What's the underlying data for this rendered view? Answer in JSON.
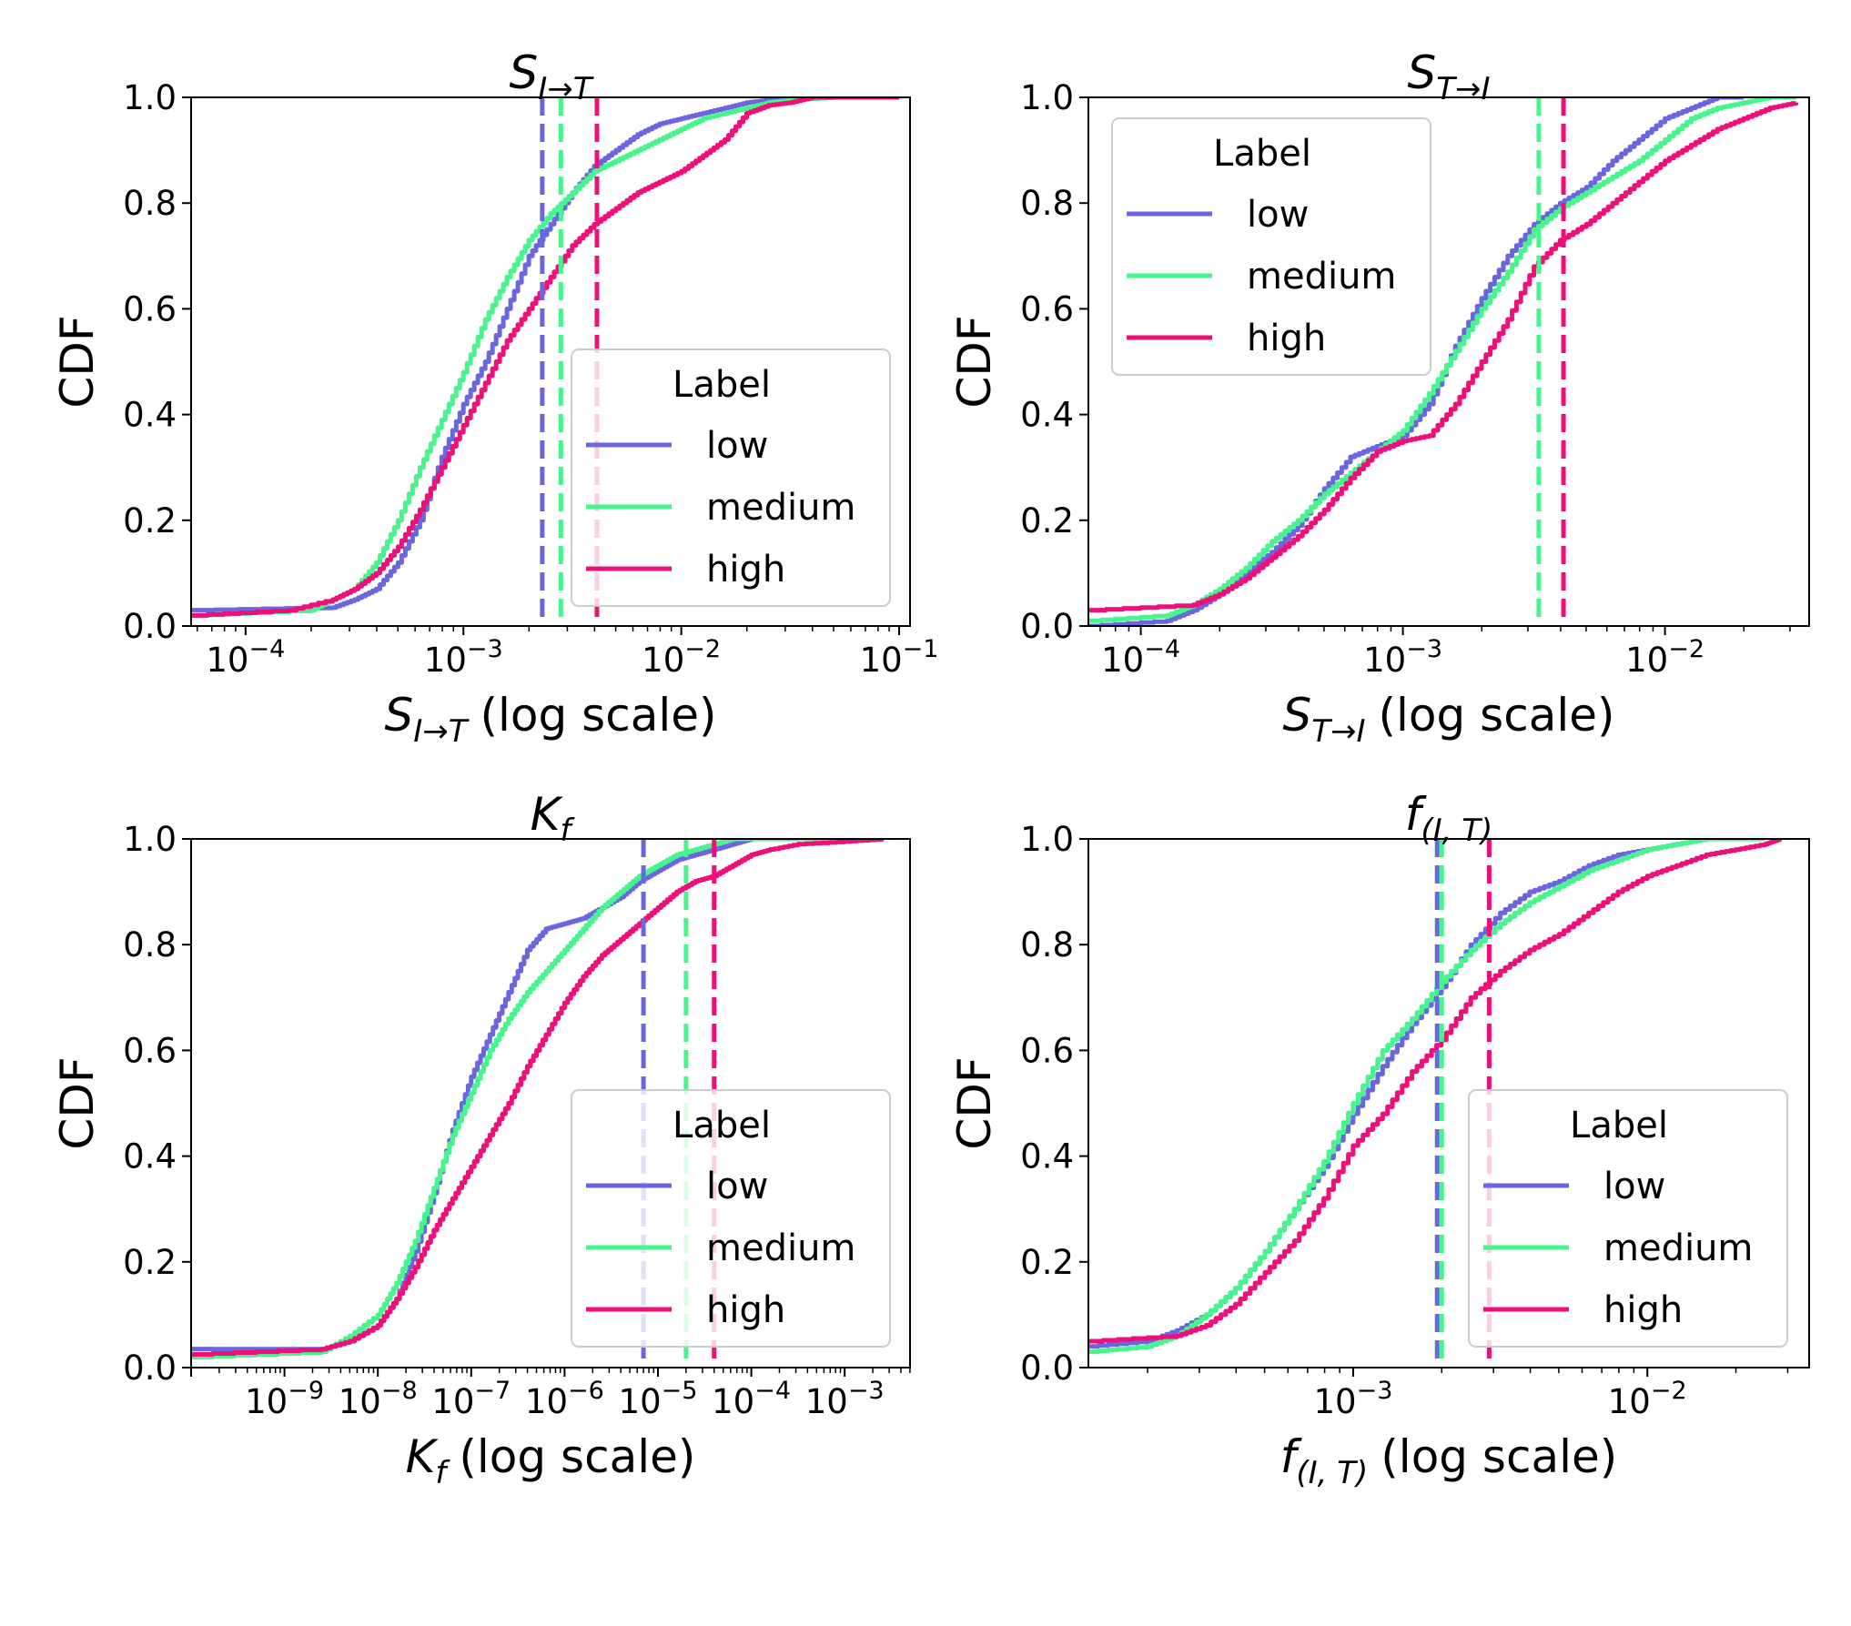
{
  "colors": {
    "low": "#6b66e0",
    "medium": "#46f58c",
    "high": "#ef0f79"
  },
  "legend": {
    "title": "Label",
    "entries": [
      "low",
      "medium",
      "high"
    ]
  },
  "chart_data": [
    {
      "id": "s_it",
      "type": "line",
      "title": "S_{I→T}",
      "title_main": "S",
      "title_sub": "I→T",
      "xlabel_main": "S",
      "xlabel_sub": "I→T",
      "xlabel_suffix": "(log scale)",
      "ylabel": "CDF",
      "xscale": "log",
      "xlim_log10": [
        -4.25,
        -0.95
      ],
      "ylim": [
        0,
        1
      ],
      "xticks": [
        {
          "exp": -4,
          "label": "10",
          "sup": "−4"
        },
        {
          "exp": -3,
          "label": "10",
          "sup": "−3"
        },
        {
          "exp": -2,
          "label": "10",
          "sup": "−2"
        },
        {
          "exp": -1,
          "label": "10",
          "sup": "−1"
        }
      ],
      "yticks": [
        "0.0",
        "0.2",
        "0.4",
        "0.6",
        "0.8",
        "1.0"
      ],
      "legend_position": "lower-right",
      "vlines": [
        {
          "series": "low",
          "x": 0.0023
        },
        {
          "series": "medium",
          "x": 0.0028
        },
        {
          "series": "high",
          "x": 0.0041
        }
      ],
      "series": [
        {
          "name": "low",
          "x_log10": [
            -4.25,
            -3.6,
            -3.5,
            -3.4,
            -3.3,
            -3.2,
            -3.1,
            -3.0,
            -2.9,
            -2.8,
            -2.7,
            -2.6,
            -2.5,
            -2.4,
            -2.3,
            -2.2,
            -2.1,
            -2.0,
            -1.9,
            -1.8,
            -1.7,
            -1.6,
            -1.5,
            -1.4
          ],
          "y": [
            0.03,
            0.035,
            0.05,
            0.07,
            0.12,
            0.2,
            0.32,
            0.42,
            0.5,
            0.6,
            0.7,
            0.76,
            0.82,
            0.87,
            0.9,
            0.93,
            0.95,
            0.96,
            0.97,
            0.98,
            0.99,
            0.995,
            1.0,
            1.0
          ]
        },
        {
          "name": "medium",
          "x_log10": [
            -4.25,
            -3.7,
            -3.6,
            -3.5,
            -3.4,
            -3.3,
            -3.2,
            -3.1,
            -3.0,
            -2.9,
            -2.8,
            -2.7,
            -2.6,
            -2.5,
            -2.4,
            -2.3,
            -2.2,
            -2.1,
            -2.0,
            -1.9,
            -1.8,
            -1.7,
            -1.6,
            -1.5,
            -1.3,
            -1.0
          ],
          "y": [
            0.02,
            0.03,
            0.05,
            0.07,
            0.12,
            0.2,
            0.3,
            0.39,
            0.48,
            0.58,
            0.66,
            0.73,
            0.78,
            0.82,
            0.86,
            0.88,
            0.9,
            0.92,
            0.94,
            0.96,
            0.97,
            0.98,
            0.99,
            0.995,
            1.0,
            1.0
          ]
        },
        {
          "name": "high",
          "x_log10": [
            -4.25,
            -3.8,
            -3.6,
            -3.5,
            -3.4,
            -3.3,
            -3.2,
            -3.1,
            -3.0,
            -2.9,
            -2.8,
            -2.7,
            -2.6,
            -2.5,
            -2.4,
            -2.3,
            -2.2,
            -2.1,
            -2.0,
            -1.9,
            -1.8,
            -1.7,
            -1.6,
            -1.5,
            -1.4,
            -1.3,
            -1.0
          ],
          "y": [
            0.02,
            0.03,
            0.05,
            0.07,
            0.1,
            0.15,
            0.22,
            0.3,
            0.38,
            0.46,
            0.54,
            0.6,
            0.66,
            0.72,
            0.76,
            0.79,
            0.82,
            0.84,
            0.86,
            0.89,
            0.92,
            0.97,
            0.985,
            0.99,
            1.0,
            1.0,
            1.0
          ]
        }
      ]
    },
    {
      "id": "s_ti",
      "type": "line",
      "title": "S_{T→I}",
      "title_main": "S",
      "title_sub": "T→I",
      "xlabel_main": "S",
      "xlabel_sub": "T→I",
      "xlabel_suffix": "(log scale)",
      "ylabel": "CDF",
      "xscale": "log",
      "xlim_log10": [
        -4.2,
        -1.45
      ],
      "ylim": [
        0,
        1
      ],
      "xticks": [
        {
          "exp": -4,
          "label": "10",
          "sup": "−4"
        },
        {
          "exp": -3,
          "label": "10",
          "sup": "−3"
        },
        {
          "exp": -2,
          "label": "10",
          "sup": "−2"
        }
      ],
      "yticks": [
        "0.0",
        "0.2",
        "0.4",
        "0.6",
        "0.8",
        "1.0"
      ],
      "legend_position": "upper-left",
      "vlines": [
        {
          "series": "medium",
          "x": 0.0033
        },
        {
          "series": "high",
          "x": 0.0041
        }
      ],
      "series": [
        {
          "name": "low",
          "x_log10": [
            -4.2,
            -3.9,
            -3.8,
            -3.7,
            -3.6,
            -3.5,
            -3.4,
            -3.3,
            -3.2,
            -3.1,
            -3.0,
            -2.9,
            -2.8,
            -2.7,
            -2.6,
            -2.5,
            -2.4,
            -2.3,
            -2.2,
            -2.1,
            -2.0,
            -1.9,
            -1.8,
            -1.7
          ],
          "y": [
            0.0,
            0.01,
            0.03,
            0.06,
            0.1,
            0.14,
            0.19,
            0.26,
            0.32,
            0.34,
            0.36,
            0.42,
            0.53,
            0.62,
            0.7,
            0.76,
            0.8,
            0.83,
            0.88,
            0.92,
            0.96,
            0.98,
            1.0,
            1.0
          ]
        },
        {
          "name": "medium",
          "x_log10": [
            -4.2,
            -3.9,
            -3.8,
            -3.7,
            -3.6,
            -3.5,
            -3.4,
            -3.3,
            -3.2,
            -3.1,
            -3.0,
            -2.9,
            -2.8,
            -2.7,
            -2.6,
            -2.5,
            -2.4,
            -2.3,
            -2.2,
            -2.1,
            -2.0,
            -1.9,
            -1.8,
            -1.7,
            -1.6,
            -1.5
          ],
          "y": [
            0.01,
            0.02,
            0.04,
            0.07,
            0.11,
            0.16,
            0.2,
            0.25,
            0.29,
            0.33,
            0.37,
            0.44,
            0.52,
            0.6,
            0.67,
            0.75,
            0.79,
            0.82,
            0.85,
            0.88,
            0.92,
            0.96,
            0.98,
            0.99,
            1.0,
            1.0
          ]
        },
        {
          "name": "high",
          "x_log10": [
            -4.2,
            -3.8,
            -3.7,
            -3.6,
            -3.5,
            -3.4,
            -3.3,
            -3.2,
            -3.1,
            -3.0,
            -2.9,
            -2.8,
            -2.7,
            -2.6,
            -2.5,
            -2.4,
            -2.3,
            -2.2,
            -2.1,
            -2.0,
            -1.9,
            -1.8,
            -1.7,
            -1.6,
            -1.5
          ],
          "y": [
            0.03,
            0.04,
            0.06,
            0.09,
            0.13,
            0.17,
            0.22,
            0.28,
            0.33,
            0.35,
            0.36,
            0.42,
            0.5,
            0.58,
            0.68,
            0.73,
            0.76,
            0.8,
            0.84,
            0.88,
            0.91,
            0.94,
            0.96,
            0.98,
            0.99
          ]
        }
      ]
    },
    {
      "id": "k_f",
      "type": "line",
      "title": "K_f",
      "title_main": "K",
      "title_sub": "f",
      "xlabel_main": "K",
      "xlabel_sub": "f",
      "xlabel_suffix": "(log scale)",
      "ylabel": "CDF",
      "xscale": "log",
      "xlim_log10": [
        -10.0,
        -2.3
      ],
      "ylim": [
        0,
        1
      ],
      "xticks": [
        {
          "exp": -9,
          "label": "10",
          "sup": "−9"
        },
        {
          "exp": -8,
          "label": "10",
          "sup": "−8"
        },
        {
          "exp": -7,
          "label": "10",
          "sup": "−7"
        },
        {
          "exp": -6,
          "label": "10",
          "sup": "−6"
        },
        {
          "exp": -5,
          "label": "10",
          "sup": "−5"
        },
        {
          "exp": -4,
          "label": "10",
          "sup": "−4"
        },
        {
          "exp": -3,
          "label": "10",
          "sup": "−3"
        }
      ],
      "yticks": [
        "0.0",
        "0.2",
        "0.4",
        "0.6",
        "0.8",
        "1.0"
      ],
      "legend_position": "lower-right",
      "vlines": [
        {
          "series": "low",
          "x": 7e-06
        },
        {
          "series": "medium",
          "x": 2e-05
        },
        {
          "series": "high",
          "x": 4e-05
        }
      ],
      "series": [
        {
          "name": "low",
          "x_log10": [
            -10.0,
            -8.6,
            -8.3,
            -8.0,
            -7.8,
            -7.6,
            -7.4,
            -7.2,
            -7.0,
            -6.8,
            -6.6,
            -6.4,
            -6.2,
            -6.0,
            -5.8,
            -5.6,
            -5.4,
            -5.2,
            -5.0,
            -4.8,
            -4.6,
            -4.4,
            -4.2,
            -4.0,
            -3.5,
            -2.6
          ],
          "y": [
            0.035,
            0.035,
            0.05,
            0.08,
            0.13,
            0.22,
            0.33,
            0.45,
            0.55,
            0.63,
            0.71,
            0.79,
            0.83,
            0.84,
            0.85,
            0.87,
            0.89,
            0.92,
            0.94,
            0.96,
            0.97,
            0.98,
            0.99,
            1.0,
            1.0,
            1.0
          ]
        },
        {
          "name": "medium",
          "x_log10": [
            -10.0,
            -8.6,
            -8.3,
            -8.0,
            -7.8,
            -7.6,
            -7.4,
            -7.2,
            -7.0,
            -6.8,
            -6.6,
            -6.4,
            -6.2,
            -6.0,
            -5.8,
            -5.6,
            -5.4,
            -5.2,
            -5.0,
            -4.8,
            -4.6,
            -4.4,
            -4.2,
            -3.8,
            -3.0,
            -2.6
          ],
          "y": [
            0.02,
            0.03,
            0.06,
            0.1,
            0.16,
            0.24,
            0.34,
            0.44,
            0.52,
            0.6,
            0.66,
            0.71,
            0.75,
            0.79,
            0.83,
            0.87,
            0.9,
            0.93,
            0.95,
            0.97,
            0.98,
            0.99,
            1.0,
            1.0,
            1.0,
            1.0
          ]
        },
        {
          "name": "high",
          "x_log10": [
            -10.0,
            -8.6,
            -8.3,
            -8.0,
            -7.8,
            -7.6,
            -7.4,
            -7.2,
            -7.0,
            -6.8,
            -6.6,
            -6.4,
            -6.2,
            -6.0,
            -5.8,
            -5.6,
            -5.4,
            -5.2,
            -5.0,
            -4.8,
            -4.6,
            -4.4,
            -4.2,
            -4.0,
            -3.8,
            -3.5,
            -3.0,
            -2.6
          ],
          "y": [
            0.025,
            0.035,
            0.05,
            0.08,
            0.13,
            0.19,
            0.26,
            0.32,
            0.38,
            0.44,
            0.5,
            0.57,
            0.63,
            0.69,
            0.74,
            0.78,
            0.81,
            0.84,
            0.87,
            0.9,
            0.92,
            0.93,
            0.95,
            0.97,
            0.98,
            0.99,
            0.995,
            1.0
          ]
        }
      ]
    },
    {
      "id": "f_it",
      "type": "line",
      "title": "f_{(I,T)}",
      "title_main": "f",
      "title_sub": "(I, T)",
      "xlabel_main": "f",
      "xlabel_sub": "(I, T)",
      "xlabel_suffix": "(log scale)",
      "ylabel": "CDF",
      "xscale": "log",
      "xlim_log10": [
        -3.9,
        -1.45
      ],
      "ylim": [
        0,
        1
      ],
      "xticks": [
        {
          "exp": -3,
          "label": "10",
          "sup": "−3"
        },
        {
          "exp": -2,
          "label": "10",
          "sup": "−2"
        }
      ],
      "yticks": [
        "0.0",
        "0.2",
        "0.4",
        "0.6",
        "0.8",
        "1.0"
      ],
      "legend_position": "lower-right",
      "vlines": [
        {
          "series": "low",
          "x": 0.00193
        },
        {
          "series": "medium",
          "x": 0.002
        },
        {
          "series": "high",
          "x": 0.0029
        }
      ],
      "series": [
        {
          "name": "low",
          "x_log10": [
            -3.9,
            -3.7,
            -3.6,
            -3.5,
            -3.4,
            -3.3,
            -3.2,
            -3.1,
            -3.0,
            -2.9,
            -2.8,
            -2.7,
            -2.6,
            -2.5,
            -2.4,
            -2.3,
            -2.2,
            -2.1,
            -2.0,
            -1.9,
            -1.8,
            -1.7
          ],
          "y": [
            0.04,
            0.05,
            0.07,
            0.1,
            0.15,
            0.22,
            0.3,
            0.38,
            0.48,
            0.57,
            0.65,
            0.72,
            0.8,
            0.86,
            0.9,
            0.92,
            0.95,
            0.97,
            0.98,
            0.99,
            1.0,
            1.0
          ]
        },
        {
          "name": "medium",
          "x_log10": [
            -3.9,
            -3.7,
            -3.6,
            -3.5,
            -3.4,
            -3.3,
            -3.2,
            -3.1,
            -3.0,
            -2.9,
            -2.8,
            -2.7,
            -2.6,
            -2.5,
            -2.4,
            -2.3,
            -2.2,
            -2.1,
            -2.0,
            -1.9,
            -1.8,
            -1.7,
            -1.6
          ],
          "y": [
            0.03,
            0.04,
            0.06,
            0.1,
            0.15,
            0.22,
            0.3,
            0.39,
            0.5,
            0.6,
            0.66,
            0.73,
            0.79,
            0.84,
            0.88,
            0.91,
            0.94,
            0.96,
            0.98,
            0.99,
            1.0,
            1.0,
            1.0
          ]
        },
        {
          "name": "high",
          "x_log10": [
            -3.9,
            -3.6,
            -3.5,
            -3.4,
            -3.3,
            -3.2,
            -3.1,
            -3.0,
            -2.9,
            -2.8,
            -2.7,
            -2.6,
            -2.5,
            -2.4,
            -2.3,
            -2.2,
            -2.1,
            -2.0,
            -1.9,
            -1.8,
            -1.7,
            -1.6,
            -1.55
          ],
          "y": [
            0.05,
            0.06,
            0.08,
            0.12,
            0.18,
            0.24,
            0.32,
            0.42,
            0.48,
            0.56,
            0.62,
            0.7,
            0.75,
            0.79,
            0.82,
            0.86,
            0.9,
            0.93,
            0.95,
            0.97,
            0.98,
            0.99,
            1.0
          ]
        }
      ]
    }
  ]
}
